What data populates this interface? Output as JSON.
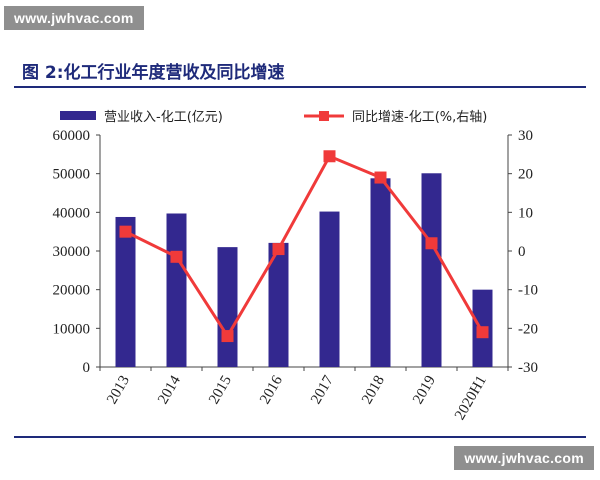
{
  "watermark": "www.jwhvac.com",
  "figure_title": "图 2:化工行业年度营收及同比增速",
  "chart_data": {
    "type": "bar",
    "categories": [
      "2013",
      "2014",
      "2015",
      "2016",
      "2017",
      "2018",
      "2019",
      "2020H1"
    ],
    "series": [
      {
        "name": "营业收入-化工(亿元)",
        "type": "bar",
        "axis": "left",
        "color": "#33288f",
        "values": [
          38800,
          39700,
          31000,
          32100,
          40200,
          48800,
          50100,
          20000
        ]
      },
      {
        "name": "同比增速-化工(%,右轴)",
        "type": "line",
        "axis": "right",
        "color": "#f03a3a",
        "values": [
          5,
          -1.5,
          -22,
          0.5,
          24.5,
          19,
          2,
          -21
        ]
      }
    ],
    "y_left": {
      "ylim": [
        0,
        60000
      ],
      "ticks": [
        "0",
        "10000",
        "20000",
        "30000",
        "40000",
        "50000",
        "60000"
      ]
    },
    "y_right": {
      "ylim": [
        -30,
        30
      ],
      "ticks": [
        "-30",
        "-20",
        "-10",
        "0",
        "10",
        "20",
        "30"
      ]
    },
    "legend": "top",
    "grid": false
  }
}
